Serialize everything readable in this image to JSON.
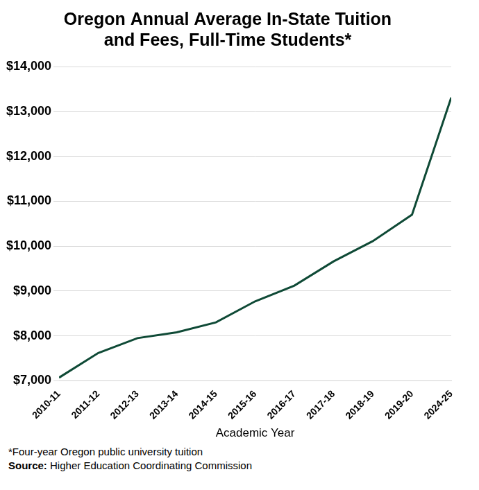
{
  "chart_data": {
    "type": "line",
    "title": [
      "Oregon Annual Average In-State Tuition",
      "and Fees, Full-Time Students*"
    ],
    "x_label": "Academic Year",
    "categories": [
      "2010-11",
      "2011-12",
      "2012-13",
      "2013-14",
      "2014-15",
      "2015-16",
      "2016-17",
      "2017-18",
      "2018-19",
      "2019-20",
      "2024-25"
    ],
    "values": [
      7070,
      7620,
      7950,
      8080,
      8300,
      8770,
      9120,
      9660,
      10110,
      10700,
      13310
    ],
    "color": "#0f4a36",
    "ylim": [
      7000,
      14000
    ],
    "yticks": [
      {
        "value": 7000,
        "label": "$7,000"
      },
      {
        "value": 8000,
        "label": "$8,000"
      },
      {
        "value": 9000,
        "label": "$9,000"
      },
      {
        "value": 10000,
        "label": "$10,000"
      },
      {
        "value": 11000,
        "label": "$11,000"
      },
      {
        "value": 12000,
        "label": "$12,000"
      },
      {
        "value": 13000,
        "label": "$13,000"
      },
      {
        "value": 14000,
        "label": "$14,000"
      }
    ],
    "grid": true,
    "footnote": "*Four-year Oregon public university tuition",
    "source": "Source: Higher Education Coordinating Commission"
  }
}
